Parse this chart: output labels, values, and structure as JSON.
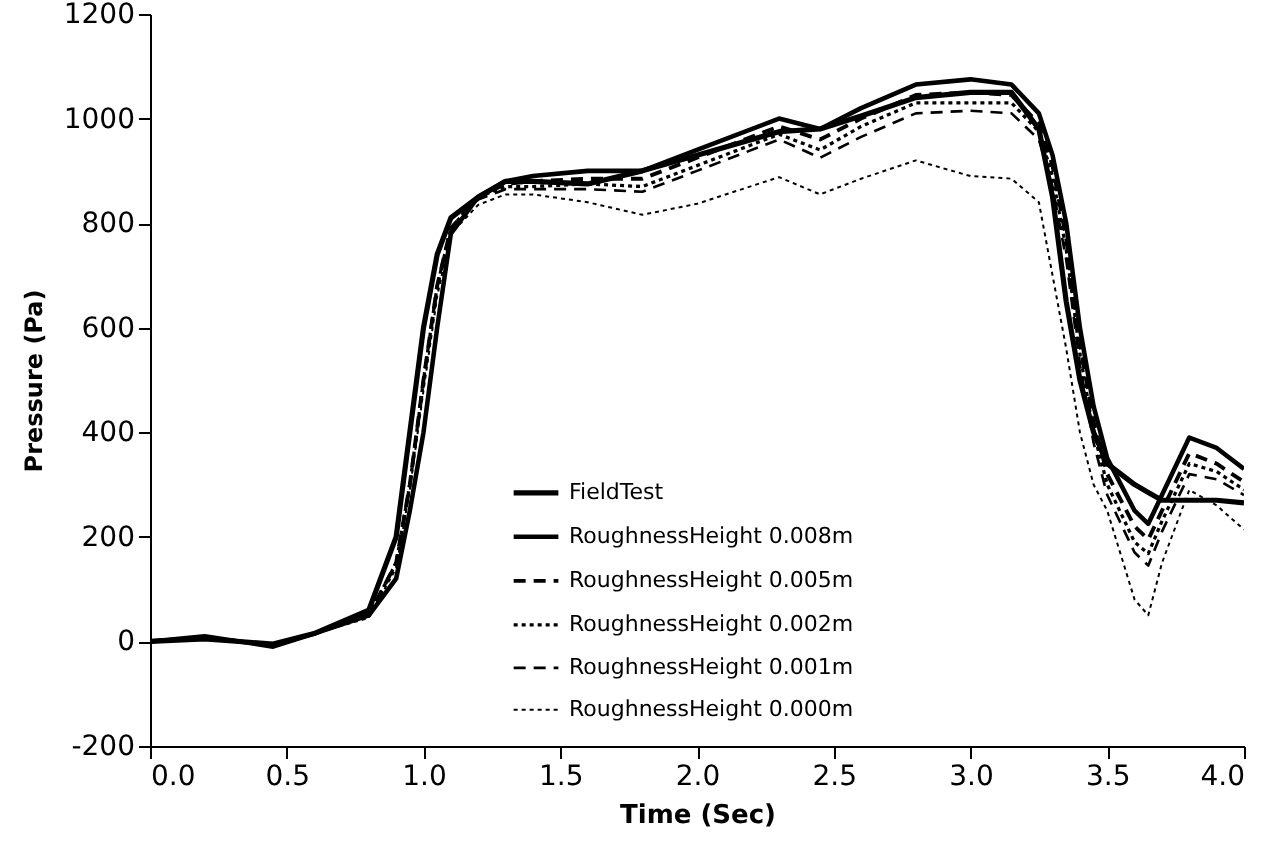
{
  "chart_data": {
    "type": "line",
    "xlabel": "Time (Sec)",
    "ylabel": "Pressure (Pa)",
    "x": [
      0,
      0.2,
      0.45,
      0.6,
      0.8,
      0.9,
      0.95,
      1.0,
      1.05,
      1.1,
      1.2,
      1.3,
      1.4,
      1.6,
      1.8,
      2.0,
      2.3,
      2.45,
      2.6,
      2.8,
      3.0,
      3.15,
      3.25,
      3.3,
      3.35,
      3.4,
      3.45,
      3.5,
      3.6,
      3.65,
      3.7,
      3.8,
      3.9,
      4.0
    ],
    "series": [
      {
        "name": "FieldTest",
        "color": "#000000",
        "line_style": "solid",
        "values": [
          0,
          5,
          -5,
          15,
          60,
          200,
          400,
          600,
          740,
          810,
          850,
          880,
          880,
          875,
          900,
          930,
          975,
          980,
          1005,
          1040,
          1050,
          1050,
          980,
          850,
          650,
          500,
          400,
          340,
          300,
          285,
          270,
          270,
          270,
          265
        ]
      },
      {
        "name": "RoughnessHeight 0.008m",
        "color": "#000000",
        "line_style": "solid",
        "values": [
          0,
          10,
          -10,
          15,
          50,
          120,
          250,
          400,
          600,
          780,
          850,
          880,
          890,
          900,
          900,
          940,
          1000,
          980,
          1020,
          1065,
          1075,
          1065,
          1010,
          930,
          800,
          600,
          450,
          350,
          250,
          225,
          280,
          390,
          370,
          330
        ]
      },
      {
        "name": "RoughnessHeight 0.005m",
        "color": "#000000",
        "line_style": "dashed",
        "values": [
          0,
          8,
          -8,
          15,
          50,
          150,
          300,
          500,
          680,
          790,
          850,
          875,
          880,
          885,
          885,
          925,
          985,
          960,
          1000,
          1045,
          1050,
          1045,
          990,
          910,
          770,
          570,
          420,
          320,
          220,
          195,
          250,
          360,
          340,
          305
        ]
      },
      {
        "name": "RoughnessHeight 0.002m",
        "color": "#000000",
        "line_style": "dotted",
        "values": [
          0,
          8,
          -8,
          15,
          50,
          150,
          300,
          500,
          680,
          790,
          850,
          870,
          870,
          875,
          870,
          910,
          970,
          940,
          985,
          1030,
          1030,
          1030,
          975,
          890,
          750,
          550,
          400,
          300,
          190,
          168,
          230,
          340,
          325,
          290
        ]
      },
      {
        "name": "RoughnessHeight 0.001m",
        "color": "#000000",
        "line_style": "dashed",
        "values": [
          0,
          8,
          -8,
          15,
          50,
          150,
          300,
          500,
          680,
          790,
          845,
          865,
          865,
          865,
          860,
          900,
          960,
          925,
          965,
          1010,
          1015,
          1010,
          960,
          870,
          730,
          530,
          380,
          280,
          170,
          145,
          210,
          320,
          310,
          280
        ]
      },
      {
        "name": "RoughnessHeight 0.000m",
        "color": "#000000",
        "line_style": "dotted",
        "values": [
          0,
          8,
          -8,
          15,
          45,
          140,
          290,
          480,
          660,
          780,
          835,
          855,
          855,
          840,
          816,
          837,
          888,
          855,
          885,
          920,
          890,
          885,
          840,
          700,
          560,
          400,
          300,
          250,
          80,
          50,
          150,
          290,
          260,
          214
        ]
      }
    ],
    "xlim": [
      0,
      4
    ],
    "xticks": [
      {
        "value": 0,
        "label": "0.0"
      },
      {
        "value": 0.5,
        "label": "0.5"
      },
      {
        "value": 1,
        "label": "1.0"
      },
      {
        "value": 1.5,
        "label": "1.5"
      },
      {
        "value": 2,
        "label": "2.0"
      },
      {
        "value": 2.5,
        "label": "2.5"
      },
      {
        "value": 3,
        "label": "3.0"
      },
      {
        "value": 3.5,
        "label": "3.5"
      },
      {
        "value": 4,
        "label": "4.0"
      }
    ],
    "ylim": [
      -200,
      1200
    ],
    "yticks": [
      -200,
      0,
      200,
      400,
      600,
      800,
      1000,
      1200
    ],
    "grid": false,
    "legend": "bottom"
  }
}
